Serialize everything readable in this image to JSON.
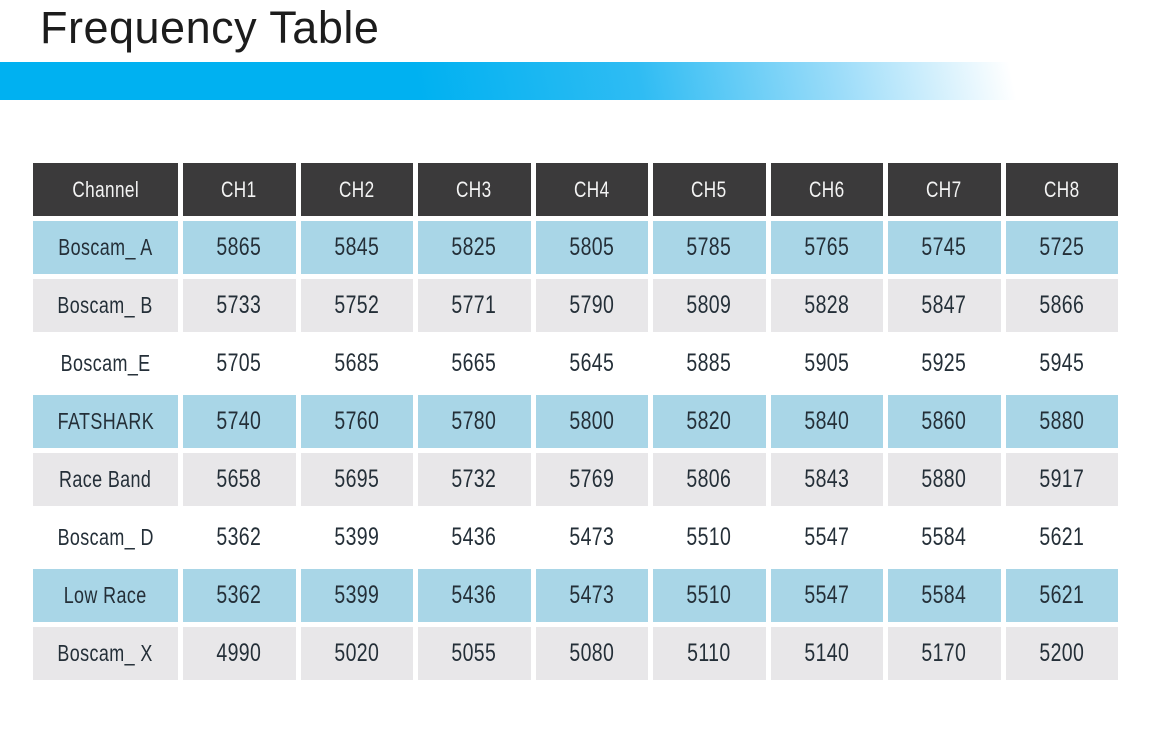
{
  "page_title": "Frequency Table",
  "colors": {
    "accent_cyan": "#00b1f1",
    "header_bg": "#3b3a3b",
    "header_text": "#f4f4f4",
    "row_blue": "#a9d6e7",
    "row_gray": "#e8e7e9",
    "row_white": "#ffffff",
    "cell_text": "#242f38",
    "title_text": "#1c1c1c"
  },
  "table": {
    "columns": [
      "Channel",
      "CH1",
      "CH2",
      "CH3",
      "CH4",
      "CH5",
      "CH6",
      "CH7",
      "CH8"
    ],
    "rows": [
      {
        "label": "Boscam_ A",
        "variant": "blue",
        "values": [
          "5865",
          "5845",
          "5825",
          "5805",
          "5785",
          "5765",
          "5745",
          "5725"
        ]
      },
      {
        "label": "Boscam_ B",
        "variant": "gray",
        "values": [
          "5733",
          "5752",
          "5771",
          "5790",
          "5809",
          "5828",
          "5847",
          "5866"
        ]
      },
      {
        "label": "Boscam_E",
        "variant": "white",
        "values": [
          "5705",
          "5685",
          "5665",
          "5645",
          "5885",
          "5905",
          "5925",
          "5945"
        ]
      },
      {
        "label": "FATSHARK",
        "variant": "blue",
        "values": [
          "5740",
          "5760",
          "5780",
          "5800",
          "5820",
          "5840",
          "5860",
          "5880"
        ]
      },
      {
        "label": "Race Band",
        "variant": "gray",
        "values": [
          "5658",
          "5695",
          "5732",
          "5769",
          "5806",
          "5843",
          "5880",
          "5917"
        ]
      },
      {
        "label": "Boscam_ D",
        "variant": "white",
        "values": [
          "5362",
          "5399",
          "5436",
          "5473",
          "5510",
          "5547",
          "5584",
          "5621"
        ]
      },
      {
        "label": "Low Race",
        "variant": "blue",
        "values": [
          "5362",
          "5399",
          "5436",
          "5473",
          "5510",
          "5547",
          "5584",
          "5621"
        ]
      },
      {
        "label": "Boscam_ X",
        "variant": "gray",
        "values": [
          "4990",
          "5020",
          "5055",
          "5080",
          "5110",
          "5140",
          "5170",
          "5200"
        ]
      }
    ]
  }
}
